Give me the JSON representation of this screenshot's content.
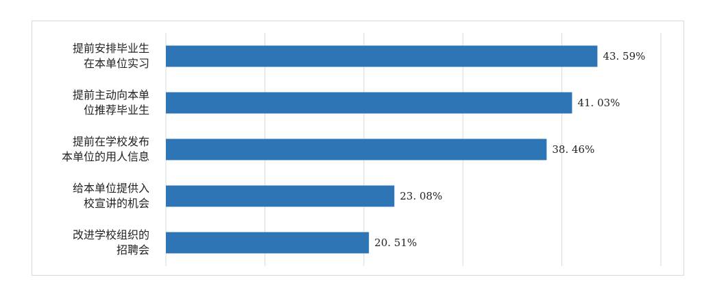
{
  "chart_data": {
    "type": "bar",
    "orientation": "horizontal",
    "title": "",
    "xlabel": "",
    "ylabel": "",
    "xlim": [
      0,
      50
    ],
    "grid": "vertical",
    "legend": "none",
    "bar_color": "#2e75b6",
    "categories": [
      [
        "提前安排毕业生",
        "在本单位实习"
      ],
      [
        "提前主动向本单",
        "位推荐毕业生"
      ],
      [
        "提前在学校发布",
        "本单位的用人信息"
      ],
      [
        "给本单位提供入",
        "校宣讲的机会"
      ],
      [
        "改进学校组织的",
        "招聘会"
      ]
    ],
    "values": [
      43.59,
      41.03,
      38.46,
      23.08,
      20.51
    ],
    "value_labels": [
      "43. 59%",
      "41. 03%",
      "38. 46%",
      "23. 08%",
      "20. 51%"
    ]
  }
}
